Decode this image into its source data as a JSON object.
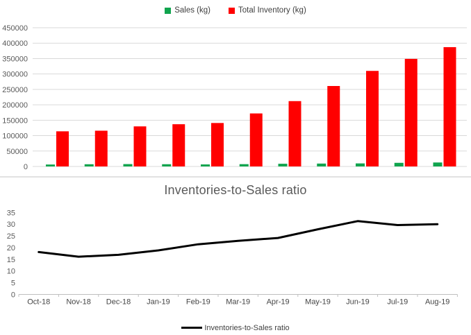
{
  "colors": {
    "sales": "#10A44E",
    "inventory": "#FF0000",
    "ratio_line": "#000000",
    "gridline": "#D9D9D9",
    "axis_line": "#BFBFBF",
    "tick_label": "#595959",
    "x_label": "#444444",
    "legend_text": "#404040",
    "title_text": "#595959"
  },
  "chart_data": [
    {
      "type": "bar",
      "title": "",
      "categories": [
        "Oct-18",
        "Nov-18",
        "Dec-18",
        "Jan-19",
        "Feb-19",
        "Mar-19",
        "Apr-19",
        "May-19",
        "Jun-19",
        "Jul-19",
        "Aug-19"
      ],
      "series": [
        {
          "name": "Sales (kg)",
          "color": "#10A44E",
          "values": [
            6300,
            7200,
            7700,
            7300,
            6600,
            7500,
            8800,
            9400,
            9900,
            11800,
            12900
          ]
        },
        {
          "name": "Total Inventory (kg)",
          "color": "#FF0000",
          "values": [
            114000,
            116000,
            130000,
            137000,
            141000,
            172000,
            212000,
            261000,
            310000,
            349000,
            387000
          ]
        }
      ],
      "ylim": [
        0,
        450000
      ],
      "ytick_step": 50000,
      "ytick_labels": [
        "450000",
        "400000",
        "350000",
        "300000",
        "250000",
        "200000",
        "150000",
        "100000",
        "50000",
        "0"
      ],
      "grid": true,
      "legend_position": "top",
      "x_axis_labels_visible": false
    },
    {
      "type": "line",
      "title": "Inventories-to-Sales ratio",
      "categories": [
        "Oct-18",
        "Nov-18",
        "Dec-18",
        "Jan-19",
        "Feb-19",
        "Mar-19",
        "Apr-19",
        "May-19",
        "Jun-19",
        "Jul-19",
        "Aug-19"
      ],
      "series": [
        {
          "name": "Inventories-to-Sales ratio",
          "color": "#000000",
          "values": [
            18.1,
            16.1,
            16.9,
            18.8,
            21.4,
            22.9,
            24.1,
            27.8,
            31.3,
            29.6,
            30.0
          ]
        }
      ],
      "ylim": [
        0,
        35
      ],
      "ytick_step": 5,
      "ytick_labels": [
        "35",
        "30",
        "25",
        "20",
        "15",
        "10",
        "5",
        "0"
      ],
      "grid": false,
      "legend_position": "bottom"
    }
  ]
}
